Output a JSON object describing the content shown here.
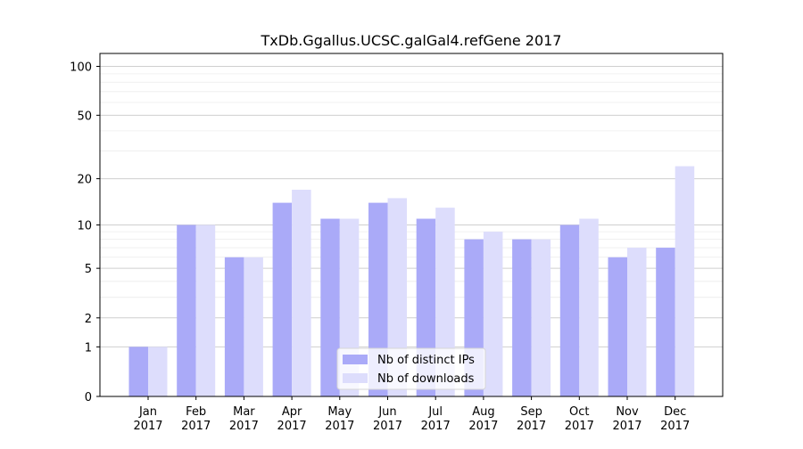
{
  "chart_data": {
    "type": "bar",
    "title": "TxDb.Ggallus.UCSC.galGal4.refGene 2017",
    "xlabel": "",
    "ylabel": "",
    "yscale": "log(1+y)",
    "ylim": [
      0,
      120
    ],
    "yticks": [
      0,
      1,
      2,
      5,
      10,
      20,
      50,
      100
    ],
    "grid": "horizontal",
    "legend_position": "bottom-center",
    "categories": [
      [
        "Jan",
        "2017"
      ],
      [
        "Feb",
        "2017"
      ],
      [
        "Mar",
        "2017"
      ],
      [
        "Apr",
        "2017"
      ],
      [
        "May",
        "2017"
      ],
      [
        "Jun",
        "2017"
      ],
      [
        "Jul",
        "2017"
      ],
      [
        "Aug",
        "2017"
      ],
      [
        "Sep",
        "2017"
      ],
      [
        "Oct",
        "2017"
      ],
      [
        "Nov",
        "2017"
      ],
      [
        "Dec",
        "2017"
      ]
    ],
    "series": [
      {
        "name": "Nb of distinct IPs",
        "color": "#aaaaf8",
        "values": [
          1,
          10,
          6,
          14,
          11,
          14,
          11,
          8,
          8,
          10,
          6,
          7
        ]
      },
      {
        "name": "Nb of downloads",
        "color": "#ddddfc",
        "values": [
          1,
          10,
          6,
          17,
          11,
          15,
          13,
          9,
          8,
          11,
          7,
          24
        ]
      }
    ]
  }
}
